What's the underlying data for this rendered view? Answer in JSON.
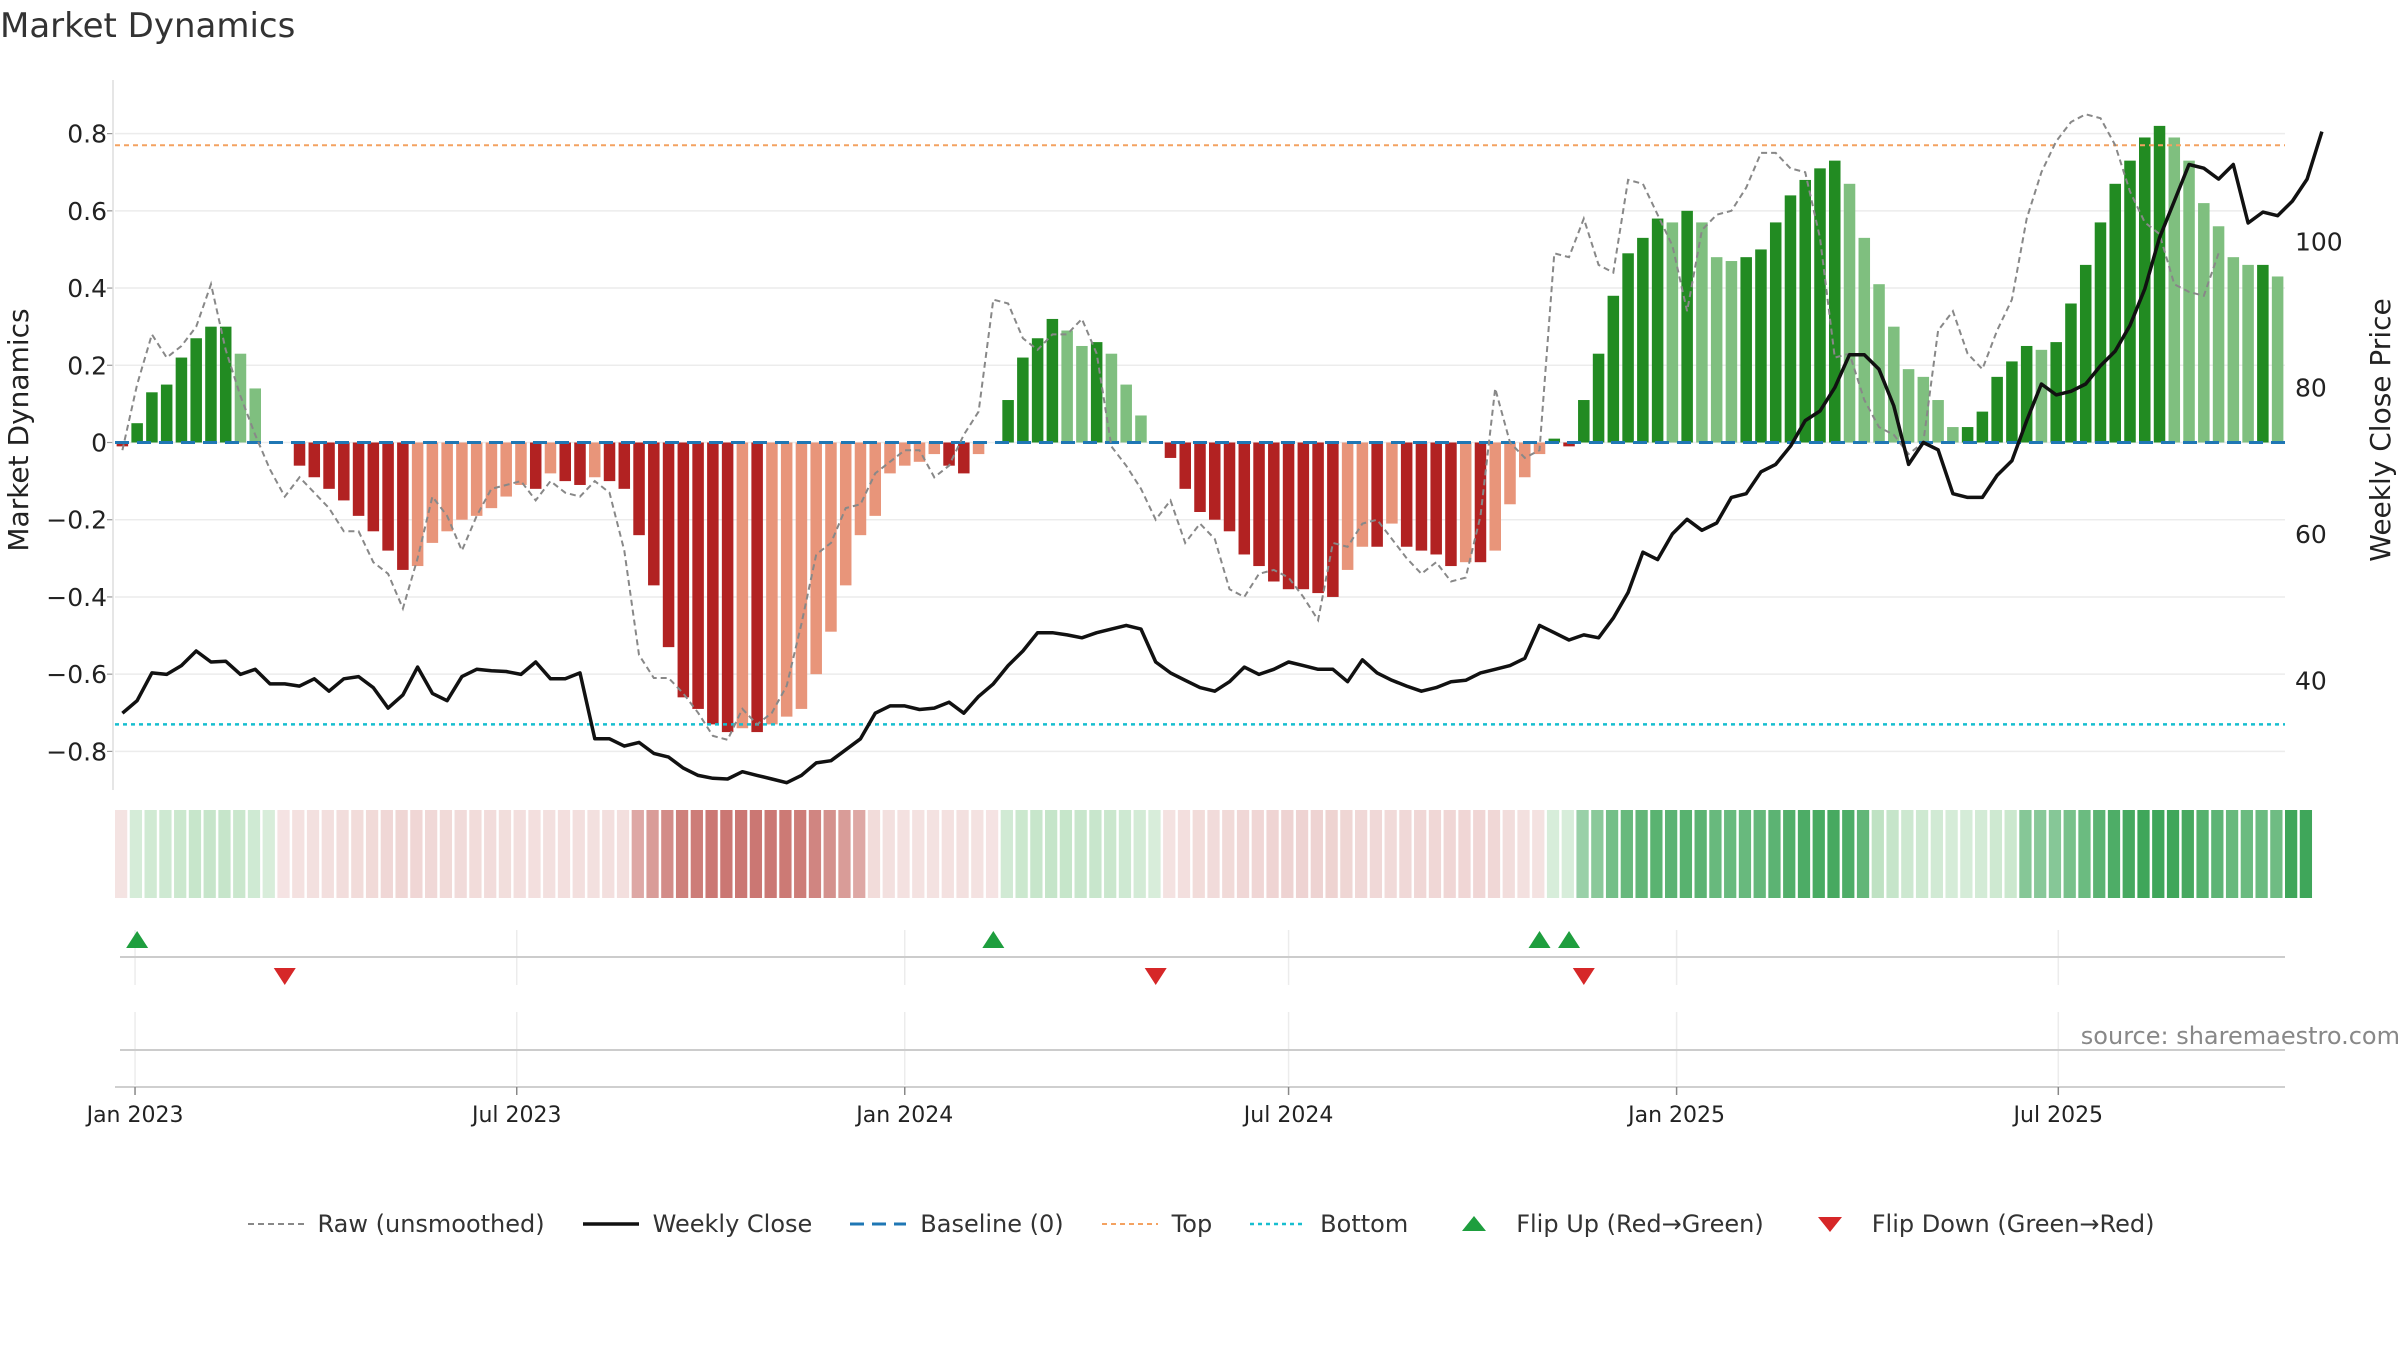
{
  "title": "Market Dynamics",
  "source": "source: sharemaestro.com",
  "colors": {
    "up_strong": "#228b22",
    "up_light": "#7fbf7f",
    "down_strong": "#b22222",
    "down_light": "#e8957a",
    "raw": "#888888",
    "close": "#111111",
    "baseline": "#1f77b4",
    "top": "#f4a261",
    "bottom": "#17becf",
    "flip_up": "#1e9e3e",
    "flip_down": "#d62728"
  },
  "legend": [
    {
      "label": "Raw (unsmoothed)",
      "icon": "dashed-gray-line"
    },
    {
      "label": "Weekly Close",
      "icon": "solid-black-line"
    },
    {
      "label": "Baseline (0)",
      "icon": "dashed-blue-line"
    },
    {
      "label": "Top",
      "icon": "dotted-orange-line"
    },
    {
      "label": "Bottom",
      "icon": "dotted-cyan-line"
    },
    {
      "label": "Flip Up (Red→Green)",
      "icon": "green-up-triangle"
    },
    {
      "label": "Flip Down (Green→Red)",
      "icon": "red-down-triangle"
    }
  ],
  "chart_data": {
    "type": "bar",
    "title": "Market Dynamics",
    "ylabel_left": "Market Dynamics",
    "ylabel_right": "Weekly Close Price",
    "ylim_left": [
      -0.9,
      0.9
    ],
    "ylim_right": [
      25,
      120
    ],
    "yticks_left": [
      "0.8",
      "0.6",
      "0.4",
      "0.2",
      "0",
      "−0.2",
      "−0.4",
      "−0.6",
      "−0.8"
    ],
    "yticks_right": [
      "100",
      "80",
      "60",
      "40"
    ],
    "x_tick_labels": [
      "Jan 2023",
      "Jul 2023",
      "Jan 2024",
      "Jul 2024",
      "Jan 2025",
      "Jul 2025"
    ],
    "start_date": "2022-12-26",
    "top_level": 0.77,
    "bottom_level": -0.73,
    "baseline": 0,
    "grid": true,
    "legend_position": "bottom",
    "dynamics": [
      -0.01,
      0.05,
      0.13,
      0.15,
      0.22,
      0.27,
      0.3,
      0.3,
      0.23,
      0.14,
      0.0,
      0.0,
      -0.06,
      -0.09,
      -0.12,
      -0.15,
      -0.19,
      -0.23,
      -0.28,
      -0.33,
      -0.32,
      -0.26,
      -0.23,
      -0.2,
      -0.19,
      -0.17,
      -0.14,
      -0.11,
      -0.12,
      -0.08,
      -0.1,
      -0.11,
      -0.09,
      -0.1,
      -0.12,
      -0.24,
      -0.37,
      -0.53,
      -0.66,
      -0.69,
      -0.73,
      -0.75,
      -0.74,
      -0.75,
      -0.73,
      -0.71,
      -0.69,
      -0.6,
      -0.49,
      -0.37,
      -0.24,
      -0.19,
      -0.08,
      -0.06,
      -0.05,
      -0.03,
      -0.06,
      -0.08,
      -0.03,
      0.0,
      0.11,
      0.22,
      0.27,
      0.32,
      0.29,
      0.25,
      0.26,
      0.23,
      0.15,
      0.07,
      0.0,
      -0.04,
      -0.12,
      -0.18,
      -0.2,
      -0.23,
      -0.29,
      -0.32,
      -0.36,
      -0.38,
      -0.38,
      -0.39,
      -0.4,
      -0.33,
      -0.27,
      -0.27,
      -0.21,
      -0.27,
      -0.28,
      -0.29,
      -0.32,
      -0.31,
      -0.31,
      -0.28,
      -0.16,
      -0.09,
      -0.03,
      0.01,
      -0.01,
      0.11,
      0.23,
      0.38,
      0.49,
      0.53,
      0.58,
      0.57,
      0.6,
      0.57,
      0.48,
      0.47,
      0.48,
      0.5,
      0.57,
      0.64,
      0.68,
      0.71,
      0.73,
      0.67,
      0.53,
      0.41,
      0.3,
      0.19,
      0.17,
      0.11,
      0.04,
      0.04,
      0.08,
      0.17,
      0.21,
      0.25,
      0.24,
      0.26,
      0.36,
      0.46,
      0.57,
      0.67,
      0.73,
      0.79,
      0.82,
      0.79,
      0.73,
      0.62,
      0.56,
      0.48,
      0.46,
      0.46,
      0.43
    ],
    "raw": [
      -0.02,
      0.15,
      0.28,
      0.22,
      0.25,
      0.3,
      0.41,
      0.24,
      0.12,
      0.02,
      -0.07,
      -0.14,
      -0.09,
      -0.13,
      -0.17,
      -0.23,
      -0.23,
      -0.31,
      -0.34,
      -0.43,
      -0.3,
      -0.14,
      -0.19,
      -0.28,
      -0.19,
      -0.12,
      -0.11,
      -0.1,
      -0.15,
      -0.1,
      -0.13,
      -0.14,
      -0.1,
      -0.13,
      -0.28,
      -0.55,
      -0.61,
      -0.61,
      -0.65,
      -0.7,
      -0.76,
      -0.77,
      -0.69,
      -0.73,
      -0.7,
      -0.63,
      -0.47,
      -0.29,
      -0.26,
      -0.17,
      -0.16,
      -0.08,
      -0.05,
      -0.02,
      -0.02,
      -0.09,
      -0.06,
      0.02,
      0.08,
      0.37,
      0.36,
      0.27,
      0.24,
      0.28,
      0.28,
      0.32,
      0.23,
      -0.01,
      -0.06,
      -0.12,
      -0.2,
      -0.15,
      -0.26,
      -0.21,
      -0.25,
      -0.38,
      -0.4,
      -0.34,
      -0.33,
      -0.35,
      -0.4,
      -0.46,
      -0.26,
      -0.27,
      -0.21,
      -0.2,
      -0.25,
      -0.3,
      -0.34,
      -0.31,
      -0.36,
      -0.35,
      -0.19,
      0.14,
      0.0,
      -0.04,
      -0.02,
      0.49,
      0.48,
      0.58,
      0.46,
      0.44,
      0.68,
      0.67,
      0.59,
      0.51,
      0.34,
      0.55,
      0.59,
      0.6,
      0.66,
      0.75,
      0.75,
      0.71,
      0.7,
      0.53,
      0.22,
      0.23,
      0.11,
      0.04,
      0.02,
      -0.03,
      0.0,
      0.29,
      0.34,
      0.23,
      0.19,
      0.29,
      0.37,
      0.58,
      0.7,
      0.78,
      0.83,
      0.85,
      0.84,
      0.77,
      0.65,
      0.57,
      0.54,
      0.41,
      0.39,
      0.38,
      0.49
    ],
    "weekly_close": [
      35.5,
      37.2,
      41.0,
      40.8,
      42.0,
      44.0,
      42.5,
      42.6,
      40.8,
      41.5,
      39.5,
      39.5,
      39.2,
      40.2,
      38.5,
      40.2,
      40.5,
      39.0,
      36.2,
      38.0,
      41.8,
      38.2,
      37.2,
      40.5,
      41.5,
      41.3,
      41.2,
      40.8,
      42.5,
      40.2,
      40.2,
      41.0,
      32.0,
      32.0,
      31.0,
      31.5,
      30.0,
      29.5,
      28.0,
      27.0,
      26.6,
      26.5,
      27.5,
      27.0,
      26.5,
      26.0,
      27.0,
      28.7,
      29.0,
      30.5,
      32.0,
      35.5,
      36.5,
      36.5,
      36.0,
      36.2,
      37.0,
      35.5,
      37.8,
      39.5,
      42.0,
      44.0,
      46.5,
      46.5,
      46.2,
      45.8,
      46.5,
      47.0,
      47.5,
      47.0,
      42.5,
      41.0,
      40.0,
      39.0,
      38.5,
      39.8,
      41.8,
      40.8,
      41.5,
      42.5,
      42.0,
      41.5,
      41.5,
      39.8,
      42.8,
      41.0,
      40.0,
      39.2,
      38.5,
      39.0,
      39.8,
      40.0,
      41.0,
      41.5,
      42.0,
      43.0,
      47.5,
      46.5,
      45.5,
      46.2,
      45.8,
      48.5,
      52.0,
      57.5,
      56.5,
      60.0,
      62.0,
      60.5,
      61.5,
      65.0,
      65.5,
      68.5,
      69.5,
      72.0,
      75.5,
      76.8,
      80.0,
      84.5,
      84.5,
      82.5,
      77.5,
      69.5,
      72.5,
      71.5,
      65.5,
      65.0,
      65.0,
      68.0,
      70.0,
      75.5,
      80.5,
      79.0,
      79.5,
      80.5,
      83.0,
      85.0,
      88.5,
      93.5,
      100.5,
      105.5,
      110.5,
      110.0,
      108.5,
      110.5,
      102.5,
      104.0,
      103.5,
      105.5,
      108.5,
      115.0
    ],
    "heat_states": [
      "light-red",
      "light-green",
      "light-green",
      "light-green",
      "light-green",
      "light-green",
      "light-green",
      "light-green",
      "light-green",
      "light-green",
      "light-green",
      "light-red",
      "light-red",
      "light-red",
      "light-red",
      "light-red",
      "light-red",
      "light-red",
      "light-red",
      "light-red",
      "light-red",
      "light-red",
      "light-red",
      "light-red",
      "light-red",
      "light-red",
      "light-red",
      "light-red",
      "light-red",
      "light-red",
      "light-red",
      "light-red",
      "light-red",
      "light-red",
      "light-red",
      "red",
      "red",
      "red",
      "red",
      "red",
      "red",
      "red",
      "red",
      "red",
      "red",
      "red",
      "red",
      "red",
      "red",
      "red",
      "red",
      "light-red",
      "light-red",
      "light-red",
      "light-red",
      "light-red",
      "light-red",
      "light-red",
      "light-red",
      "light-red",
      "light-green",
      "light-green",
      "light-green",
      "light-green",
      "light-green",
      "light-green",
      "light-green",
      "light-green",
      "light-green",
      "light-green",
      "light-green",
      "light-red",
      "light-red",
      "light-red",
      "light-red",
      "light-red",
      "light-red",
      "light-red",
      "light-red",
      "light-red",
      "light-red",
      "light-red",
      "light-red",
      "light-red",
      "light-red",
      "light-red",
      "light-red",
      "light-red",
      "light-red",
      "light-red",
      "light-red",
      "light-red",
      "light-red",
      "light-red",
      "light-red",
      "light-red",
      "light-red",
      "light-green",
      "light-green",
      "green",
      "green",
      "green",
      "green",
      "green",
      "green",
      "green",
      "green",
      "green",
      "green",
      "green",
      "green",
      "green",
      "green",
      "green",
      "green",
      "green",
      "green",
      "green",
      "green",
      "light-green",
      "light-green",
      "light-green",
      "light-green",
      "light-green",
      "light-green",
      "light-green",
      "light-green",
      "light-green",
      "light-green",
      "green",
      "green",
      "green",
      "green",
      "green",
      "green",
      "green",
      "green",
      "green",
      "green",
      "green",
      "green",
      "green",
      "green",
      "green",
      "green",
      "green",
      "green",
      "green",
      "green"
    ],
    "flip_up_weeks": [
      1,
      59,
      96,
      98
    ],
    "flip_down_weeks": [
      11,
      70,
      99
    ]
  }
}
